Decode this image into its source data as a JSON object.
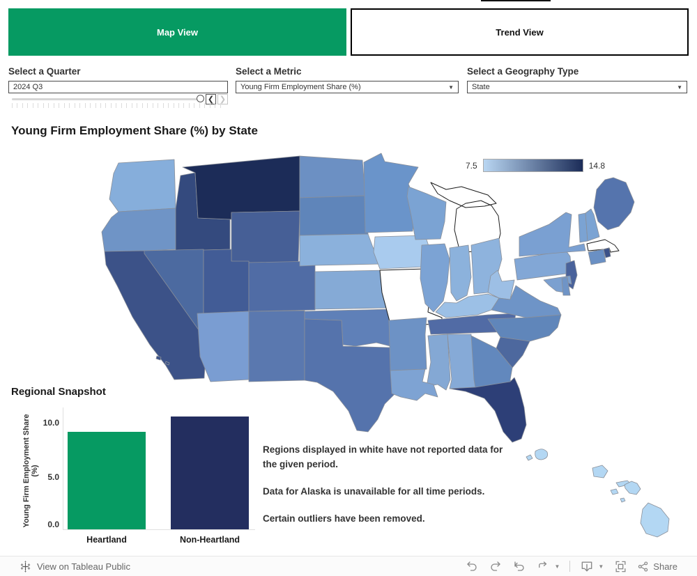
{
  "tabs": {
    "map_view": "Map View",
    "trend_view": "Trend View"
  },
  "filters": {
    "quarter": {
      "label": "Select a Quarter",
      "value": "2024 Q3"
    },
    "metric": {
      "label": "Select a Metric",
      "value": "Young Firm Employment Share (%)"
    },
    "geography": {
      "label": "Select a Geography Type",
      "value": "State"
    }
  },
  "map": {
    "title": "Young Firm Employment Share (%) by State",
    "legend": {
      "min": "7.5",
      "max": "14.8",
      "min_color": "#b9d6f2",
      "max_color": "#1b2c58"
    },
    "no_data_states": [
      "MI",
      "MO",
      "MA"
    ],
    "state_fills": {
      "WA": "#86aedb",
      "OR": "#6f94c6",
      "CA": "#3c5288",
      "NV": "#4c6aa0",
      "ID": "#344a7e",
      "MT": "#1c2c58",
      "WY": "#465f96",
      "UT": "#425c96",
      "CO": "#506ca5",
      "AZ": "#7a9dd2",
      "NM": "#5a78af",
      "ND": "#6c90c3",
      "SD": "#5f85ba",
      "NE": "#8bb1dc",
      "KS": "#85aad6",
      "OK": "#5f80b8",
      "TX": "#5573ac",
      "MN": "#6a94ca",
      "IA": "#a9cbee",
      "MO": "#ffffff",
      "WI": "#7ba3d3",
      "MI": "#ffffff",
      "IL": "#7ca3d4",
      "IN": "#8cb2dc",
      "OH": "#8eb3dd",
      "KY": "#9cc0e6",
      "TN": "#516ba5",
      "MS": "#84a8d4",
      "AL": "#86aad7",
      "GA": "#6288bd",
      "SC": "#4d689e",
      "FL": "#2d3f77",
      "NC": "#6086ba",
      "VA": "#6e94c7",
      "WV": "#9dbfe5",
      "MD": "#7ba0d0",
      "DE": "#6f94c6",
      "NJ": "#49629b",
      "PA": "#82a7d6",
      "NY": "#7aa0d2",
      "CT": "#6a90c4",
      "RI": "#3c5288",
      "VT": "#7ba3d3",
      "NH": "#7ba3d3",
      "ME": "#5574ad",
      "AR": "#6d92c5",
      "LA": "#7ea3d3",
      "HI": "#b3d7f3"
    }
  },
  "snapshot": {
    "title": "Regional Snapshot",
    "y_axis_label": "Young Firm Employment Share (%)",
    "y_ticks": [
      "10.0",
      "5.0",
      "0.0"
    ]
  },
  "notes": [
    "Regions displayed in white have not reported data for the given period.",
    "Data for Alaska is unavailable for all time periods.",
    "Certain outliers have been removed."
  ],
  "footer": {
    "view_on": "View on Tableau Public",
    "share": "Share"
  },
  "chart_data": [
    {
      "type": "bar",
      "title": "Regional Snapshot",
      "categories": [
        "Heartland",
        "Non-Heartland"
      ],
      "values": [
        9.5,
        11.0
      ],
      "colors": [
        "#069a62",
        "#232e5f"
      ],
      "xlabel": "",
      "ylabel": "Young Firm Employment Share (%)",
      "ylim": [
        0,
        11.5
      ],
      "y_ticks": [
        0.0,
        5.0,
        10.0
      ],
      "grid": false,
      "legend": "none"
    },
    {
      "type": "heatmap",
      "subtype": "choropleth-us-states",
      "title": "Young Firm Employment Share (%) by State",
      "color_scale": {
        "min": 7.5,
        "max": 14.8,
        "min_color": "#b9d6f2",
        "max_color": "#1b2c58"
      },
      "no_data_states": [
        "Michigan",
        "Missouri",
        "Massachusetts",
        "Alaska"
      ],
      "values_encoding": "state fill colors listed in map.state_fills"
    }
  ]
}
